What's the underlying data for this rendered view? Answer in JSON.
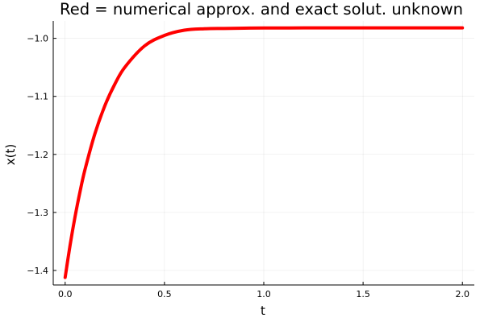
{
  "chart_data": {
    "type": "line",
    "title": "Red = numerical approx. and exact solut. unknown",
    "xlabel": "t",
    "ylabel": "x(t)",
    "xlim": [
      -0.06,
      2.06
    ],
    "ylim": [
      -1.425,
      -0.97
    ],
    "x_ticks": [
      0.0,
      0.5,
      1.0,
      1.5,
      2.0
    ],
    "x_tick_labels": [
      "0.0",
      "0.5",
      "1.0",
      "1.5",
      "2.0"
    ],
    "y_ticks": [
      -1.4,
      -1.3,
      -1.2,
      -1.1,
      -1.0
    ],
    "y_tick_labels": [
      "−1.4",
      "−1.3",
      "−1.2",
      "−1.1",
      "−1.0"
    ],
    "grid": true,
    "legend": "none",
    "series": [
      {
        "color": "#ff0000",
        "x": [
          0.0,
          0.025,
          0.05,
          0.075,
          0.1,
          0.15,
          0.2,
          0.25,
          0.3,
          0.4,
          0.5,
          0.6,
          0.7,
          0.8,
          0.9,
          1.0,
          1.2,
          1.4,
          1.6,
          1.8,
          2.0
        ],
        "y": [
          -1.412,
          -1.356,
          -1.307,
          -1.264,
          -1.226,
          -1.164,
          -1.116,
          -1.079,
          -1.05,
          -1.013,
          -0.995,
          -0.986,
          -0.9835,
          -0.983,
          -0.9825,
          -0.9822,
          -0.982,
          -0.9819,
          -0.9819,
          -0.9819,
          -0.9819
        ]
      }
    ]
  }
}
